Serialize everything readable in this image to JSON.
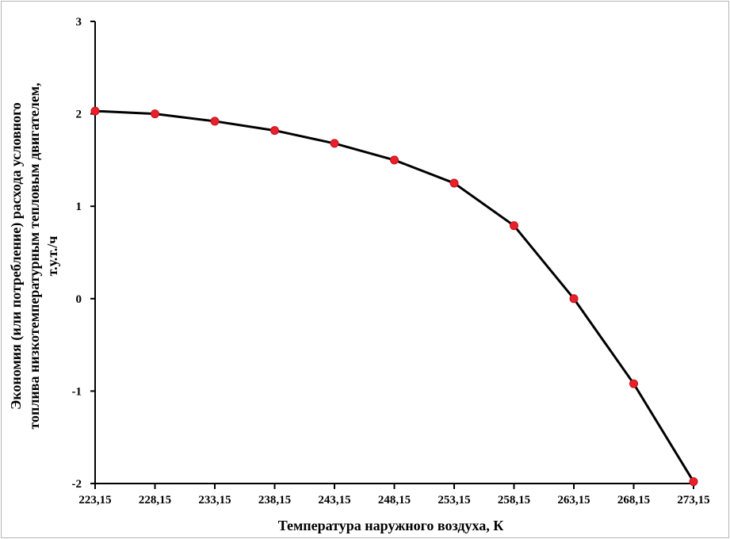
{
  "chart_data": {
    "type": "line",
    "title": "",
    "xlabel": "Температура наружного воздуха, К",
    "ylabel_lines": [
      "Экономия (или потребление) расхода условного",
      "топлива  низкотемпературным тепловым двигателем,",
      "т.у.т./ч"
    ],
    "categories": [
      "223,15",
      "228,15",
      "233,15",
      "238,15",
      "243,15",
      "248,15",
      "253,15",
      "258,15",
      "263,15",
      "268,15",
      "273,15"
    ],
    "series": [
      {
        "values": [
          2.03,
          2.0,
          1.92,
          1.82,
          1.68,
          1.5,
          1.25,
          0.79,
          0.0,
          -0.92,
          -1.98
        ]
      }
    ],
    "ylim": [
      -2,
      3
    ],
    "yticks": [
      "-2",
      "-1",
      "0",
      "1",
      "2",
      "3"
    ],
    "grid": false,
    "line_color": "#000000",
    "marker_color": "#e8202a"
  }
}
